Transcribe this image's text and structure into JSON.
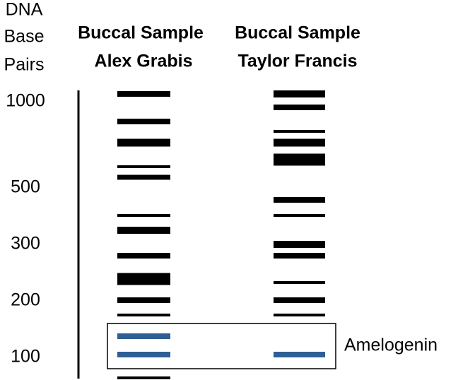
{
  "axis_title": [
    "DNA",
    "Base",
    "Pairs"
  ],
  "lanes": [
    {
      "heading": [
        "Buccal Sample",
        "Alex Grabis"
      ]
    },
    {
      "heading": [
        "Buccal Sample",
        "Taylor Francis"
      ]
    }
  ],
  "scale_labels": [
    "1000",
    "500",
    "300",
    "200",
    "100"
  ],
  "annotation": "Amelogenin"
}
